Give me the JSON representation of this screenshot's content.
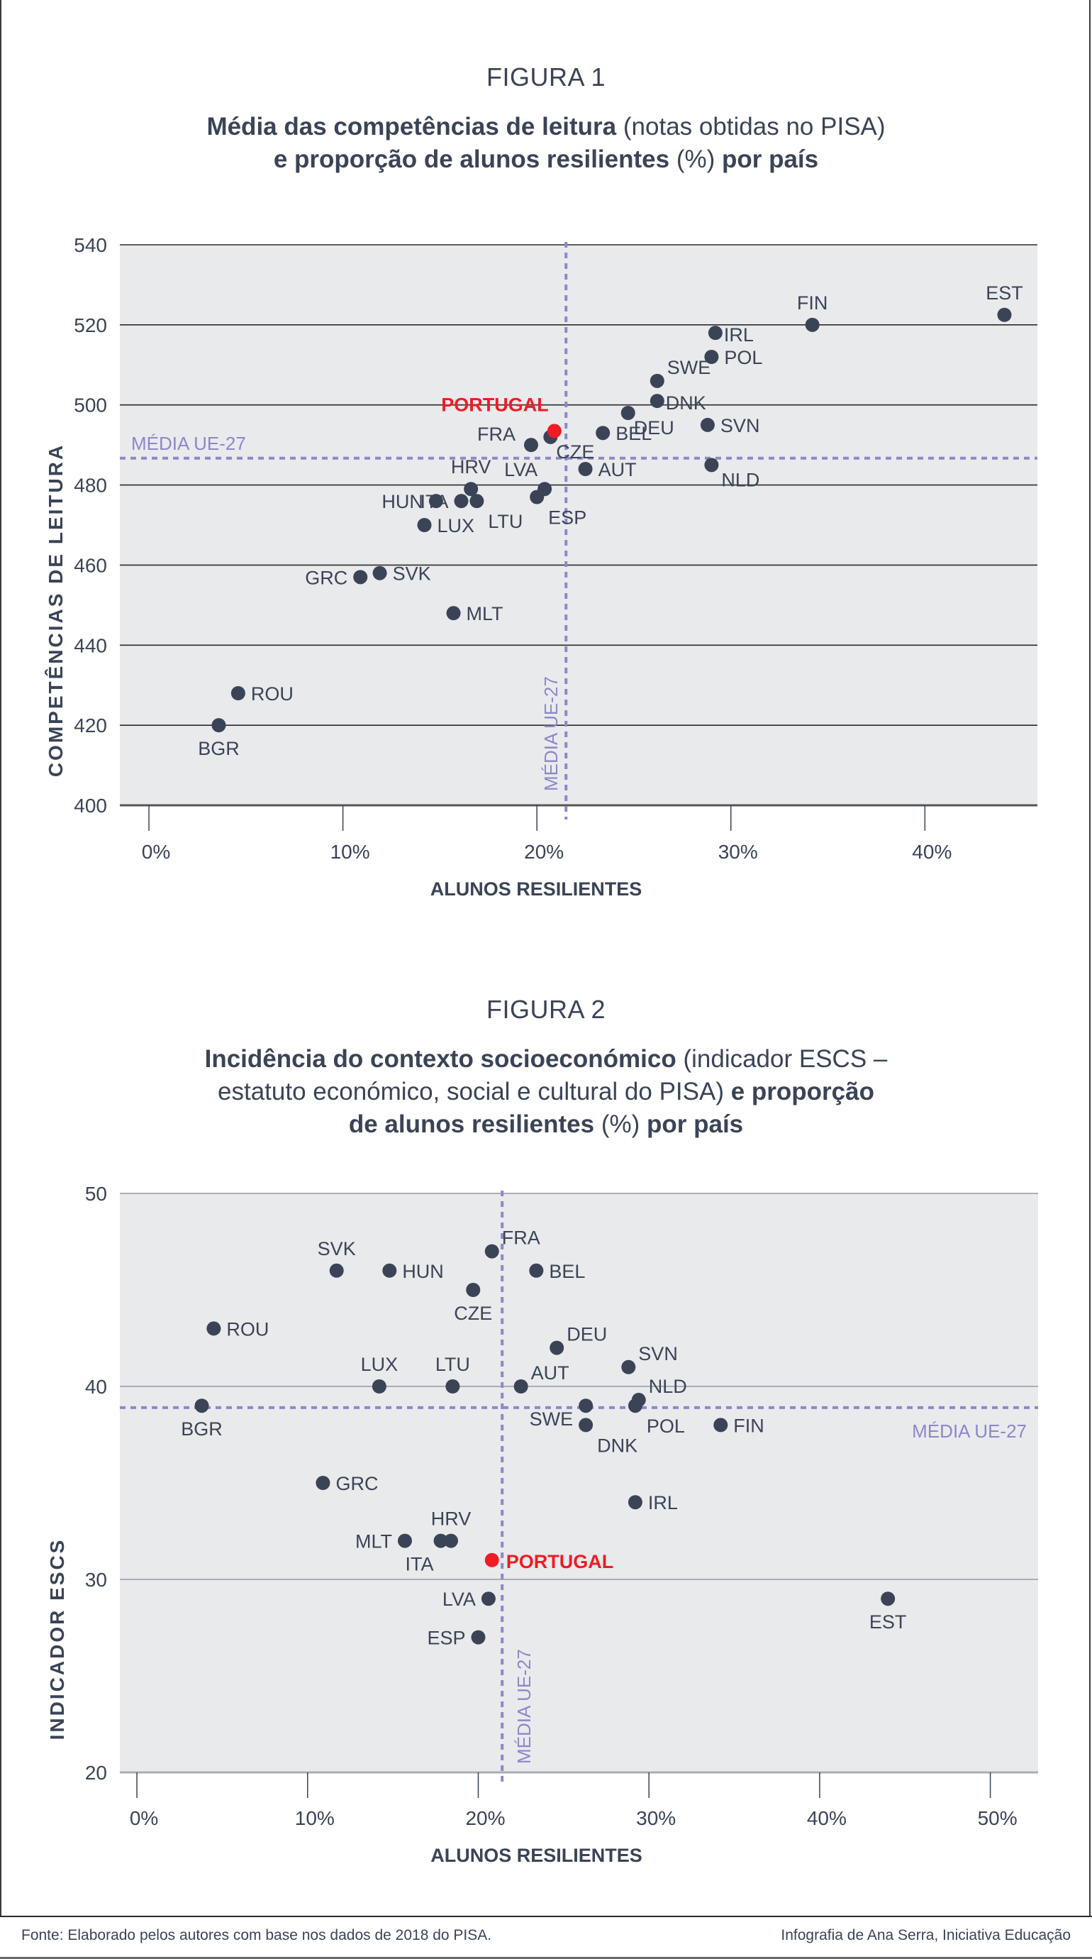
{
  "figures": [
    {
      "label": "FIGURA 1",
      "title_parts": [
        {
          "text": "Média das competências de leitura",
          "weight": "bold"
        },
        {
          "text": " (notas obtidas no PISA)",
          "weight": "light"
        },
        {
          "text": "e proporção de alunos resilientes",
          "weight": "bold",
          "newline": true
        },
        {
          "text": " (%)",
          "weight": "light"
        },
        {
          "text": " por país",
          "weight": "bold"
        }
      ]
    },
    {
      "label": "FIGURA 2",
      "title_parts": [
        {
          "text": "Incidência do contexto socioeconómico",
          "weight": "bold"
        },
        {
          "text": " (indicador ESCS –",
          "weight": "light"
        },
        {
          "text": "estatuto económico, social e cultural do PISA)",
          "weight": "light",
          "newline": true
        },
        {
          "text": " e proporção",
          "weight": "bold"
        },
        {
          "text": "de alunos resilientes",
          "weight": "bold",
          "newline": true
        },
        {
          "text": " (%)",
          "weight": "light"
        },
        {
          "text": " por país",
          "weight": "bold"
        }
      ]
    }
  ],
  "colors": {
    "text": "#3a4456",
    "point": "#3a4456",
    "highlight": "#ee1c25",
    "mean_line": "#8b88c9",
    "plot_bg": "#e9eaec"
  },
  "chart_data": [
    {
      "type": "scatter",
      "title": "Média das competências de leitura (notas obtidas no PISA) e proporção de alunos resilientes (%) por país",
      "xlabel": "ALUNOS RESILIENTES",
      "ylabel": "COMPETÊNCIAS DE LEITURA",
      "xlim": [
        -1.5,
        45.8
      ],
      "ylim": [
        400,
        540
      ],
      "xticks": [
        0,
        10,
        20,
        30,
        40
      ],
      "xtick_labels": [
        "0%",
        "10%",
        "20%",
        "30%",
        "40%"
      ],
      "yticks": [
        400,
        420,
        440,
        460,
        480,
        500,
        520,
        540
      ],
      "ytick_labels": [
        "400",
        "420",
        "440",
        "460",
        "480",
        "500",
        "520",
        "540"
      ],
      "grid": "horizontal",
      "mean_lines": {
        "x": 21.5,
        "y": 486.7,
        "label": "MÉDIA UE-27"
      },
      "highlight": "PORTUGAL",
      "points": [
        {
          "name": "BGR",
          "x": 3.6,
          "y": 420,
          "lp": "below"
        },
        {
          "name": "ROU",
          "x": 4.6,
          "y": 428,
          "lp": "right"
        },
        {
          "name": "GRC",
          "x": 10.9,
          "y": 457,
          "lp": "left"
        },
        {
          "name": "SVK",
          "x": 11.9,
          "y": 458,
          "lp": "right"
        },
        {
          "name": "MLT",
          "x": 15.7,
          "y": 448,
          "lp": "right"
        },
        {
          "name": "LUX",
          "x": 14.2,
          "y": 470,
          "lp": "right"
        },
        {
          "name": "HUN",
          "x": 14.8,
          "y": 476,
          "lp": "left"
        },
        {
          "name": "ITA",
          "x": 16.1,
          "y": 476,
          "lp": "left"
        },
        {
          "name": "HRV",
          "x": 16.6,
          "y": 479,
          "lp": "above"
        },
        {
          "name": "LTU",
          "x": 16.9,
          "y": 476,
          "lp": "belowright"
        },
        {
          "name": "ESP",
          "x": 20.0,
          "y": 477,
          "lp": "belowright"
        },
        {
          "name": "LVA",
          "x": 20.4,
          "y": 479,
          "lp": "aboveleft"
        },
        {
          "name": "FRA",
          "x": 19.7,
          "y": 490,
          "lp": "upleft"
        },
        {
          "name": "CZE",
          "x": 20.7,
          "y": 492,
          "lp": "downright"
        },
        {
          "name": "PORTUGAL",
          "x": 20.9,
          "y": 493.5,
          "lp": "upleftbig"
        },
        {
          "name": "AUT",
          "x": 22.5,
          "y": 484,
          "lp": "right"
        },
        {
          "name": "BEL",
          "x": 23.4,
          "y": 493,
          "lp": "right"
        },
        {
          "name": "DEU",
          "x": 24.7,
          "y": 498,
          "lp": "downright"
        },
        {
          "name": "SWE",
          "x": 26.2,
          "y": 506,
          "lp": "rightup"
        },
        {
          "name": "DNK",
          "x": 26.2,
          "y": 501,
          "lp": "rightflush"
        },
        {
          "name": "SVN",
          "x": 28.8,
          "y": 495,
          "lp": "right"
        },
        {
          "name": "NLD",
          "x": 29.0,
          "y": 485,
          "lp": "rightdown"
        },
        {
          "name": "POL",
          "x": 29.0,
          "y": 512,
          "lp": "right"
        },
        {
          "name": "IRL",
          "x": 29.2,
          "y": 518,
          "lp": "rightflush"
        },
        {
          "name": "FIN",
          "x": 34.2,
          "y": 520,
          "lp": "above"
        },
        {
          "name": "EST",
          "x": 44.1,
          "y": 522.5,
          "lp": "above"
        }
      ]
    },
    {
      "type": "scatter",
      "title": "Incidência do contexto socioeconómico (indicador ESCS – estatuto económico, social e cultural do PISA) e proporção de alunos resilientes (%) por país",
      "xlabel": "ALUNOS RESILIENTES",
      "ylabel": "INDICADOR ESCS",
      "xlim": [
        -1.0,
        52.8
      ],
      "ylim": [
        20,
        50
      ],
      "xticks": [
        0,
        10,
        20,
        30,
        40,
        50
      ],
      "xtick_labels": [
        "0%",
        "10%",
        "20%",
        "30%",
        "40%",
        "50%"
      ],
      "yticks": [
        20,
        30,
        40,
        50
      ],
      "ytick_labels": [
        "20",
        "30",
        "40",
        "50"
      ],
      "grid": "horizontal",
      "mean_lines": {
        "x": 21.4,
        "y": 38.9,
        "label": "MÉDIA UE-27"
      },
      "highlight": "PORTUGAL",
      "points": [
        {
          "name": "BGR",
          "x": 3.8,
          "y": 39.0,
          "lp": "below"
        },
        {
          "name": "ROU",
          "x": 4.5,
          "y": 43.0,
          "lp": "right"
        },
        {
          "name": "SVK",
          "x": 11.7,
          "y": 46.0,
          "lp": "above"
        },
        {
          "name": "HUN",
          "x": 14.8,
          "y": 46.0,
          "lp": "right"
        },
        {
          "name": "CZE",
          "x": 19.7,
          "y": 45.0,
          "lp": "below"
        },
        {
          "name": "FRA",
          "x": 20.8,
          "y": 47.0,
          "lp": "rightup"
        },
        {
          "name": "BEL",
          "x": 23.4,
          "y": 46.0,
          "lp": "right"
        },
        {
          "name": "DEU",
          "x": 24.6,
          "y": 42.0,
          "lp": "rightup"
        },
        {
          "name": "LUX",
          "x": 14.2,
          "y": 40.0,
          "lp": "above"
        },
        {
          "name": "LTU",
          "x": 18.5,
          "y": 40.0,
          "lp": "above"
        },
        {
          "name": "AUT",
          "x": 22.5,
          "y": 40.0,
          "lp": "rightup"
        },
        {
          "name": "SVN",
          "x": 28.8,
          "y": 41.0,
          "lp": "rightup"
        },
        {
          "name": "SWE",
          "x": 26.3,
          "y": 39.0,
          "lp": "leftdown"
        },
        {
          "name": "DNK",
          "x": 26.3,
          "y": 38.0,
          "lp": "belowright"
        },
        {
          "name": "NLD",
          "x": 29.4,
          "y": 39.3,
          "lp": "rightup"
        },
        {
          "name": "POL",
          "x": 29.2,
          "y": 39.0,
          "lp": "belowright"
        },
        {
          "name": "FIN",
          "x": 34.2,
          "y": 38.0,
          "lp": "right"
        },
        {
          "name": "GRC",
          "x": 10.9,
          "y": 35.0,
          "lp": "right"
        },
        {
          "name": "IRL",
          "x": 29.2,
          "y": 34.0,
          "lp": "right"
        },
        {
          "name": "MLT",
          "x": 15.7,
          "y": 32.0,
          "lp": "left"
        },
        {
          "name": "ITA",
          "x": 17.8,
          "y": 32.0,
          "lp": "belowleft"
        },
        {
          "name": "HRV",
          "x": 18.4,
          "y": 32.0,
          "lp": "above"
        },
        {
          "name": "PORTUGAL",
          "x": 20.8,
          "y": 31.0,
          "lp": "rightbig"
        },
        {
          "name": "LVA",
          "x": 20.6,
          "y": 29.0,
          "lp": "left"
        },
        {
          "name": "ESP",
          "x": 20.0,
          "y": 27.0,
          "lp": "left"
        },
        {
          "name": "EST",
          "x": 44.0,
          "y": 29.0,
          "lp": "below"
        }
      ]
    }
  ],
  "footer": {
    "source": "Fonte: Elaborado pelos autores com base nos dados de 2018 do PISA.",
    "credit": "Infografia de Ana Serra, Iniciativa Educação"
  }
}
